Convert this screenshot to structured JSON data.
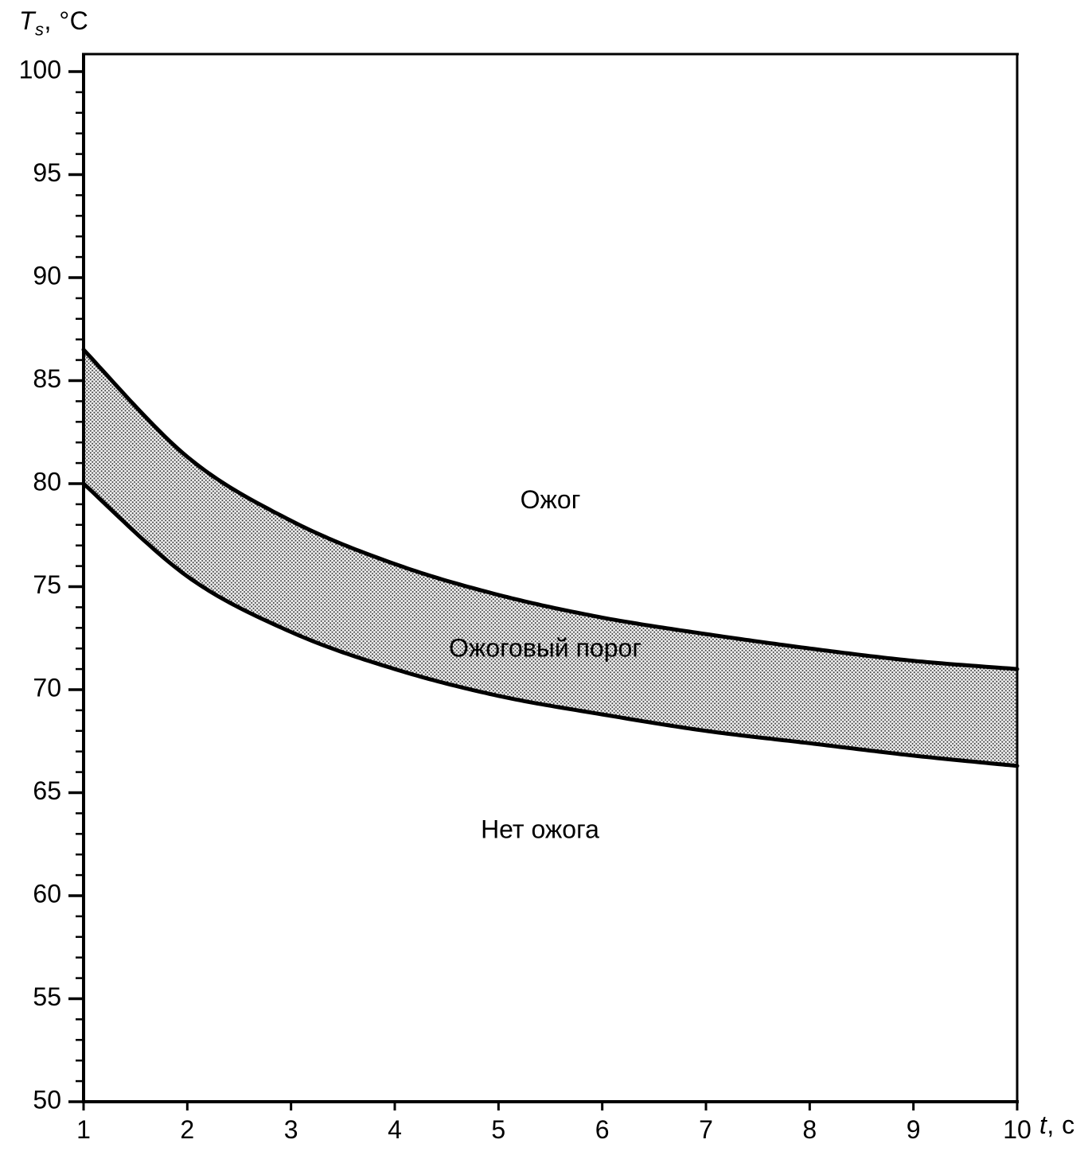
{
  "chart_data": {
    "type": "area",
    "title": "",
    "xlabel": "t, c",
    "ylabel": "Ts, °C",
    "x": [
      1,
      2,
      3,
      4,
      5,
      6,
      7,
      8,
      9,
      10
    ],
    "series": [
      {
        "name": "upper_burn_threshold",
        "values": [
          86.5,
          81.3,
          78.2,
          76.1,
          74.6,
          73.5,
          72.7,
          72.0,
          71.4,
          71.0
        ]
      },
      {
        "name": "lower_burn_threshold",
        "values": [
          80.0,
          75.5,
          72.8,
          71.0,
          69.7,
          68.8,
          68.0,
          67.4,
          66.8,
          66.3
        ]
      }
    ],
    "xlim": [
      1,
      10
    ],
    "ylim": [
      50,
      100
    ],
    "x_ticks": [
      1,
      2,
      3,
      4,
      5,
      6,
      7,
      8,
      9,
      10
    ],
    "y_major_ticks": [
      50,
      55,
      60,
      65,
      70,
      75,
      80,
      85,
      90,
      95,
      100
    ],
    "y_minor_step": 1,
    "grid": false,
    "legend": "none",
    "band_fill": "stipple",
    "line_color": "#000000",
    "annotations": [
      {
        "id": "region-label-burn",
        "text": "Ожог",
        "x": 5.5,
        "y": 78.8
      },
      {
        "id": "region-label-threshold",
        "text": "Ожоговый порог",
        "x": 5.45,
        "y": 71.6
      },
      {
        "id": "region-label-no-burn",
        "text": "Нет ожога",
        "x": 5.4,
        "y": 62.8
      }
    ]
  },
  "labels": {
    "y_axis": {
      "var": "T",
      "sub": "s",
      "rest": ", °C"
    },
    "x_axis": {
      "var": "t",
      "rest": ", c"
    }
  }
}
